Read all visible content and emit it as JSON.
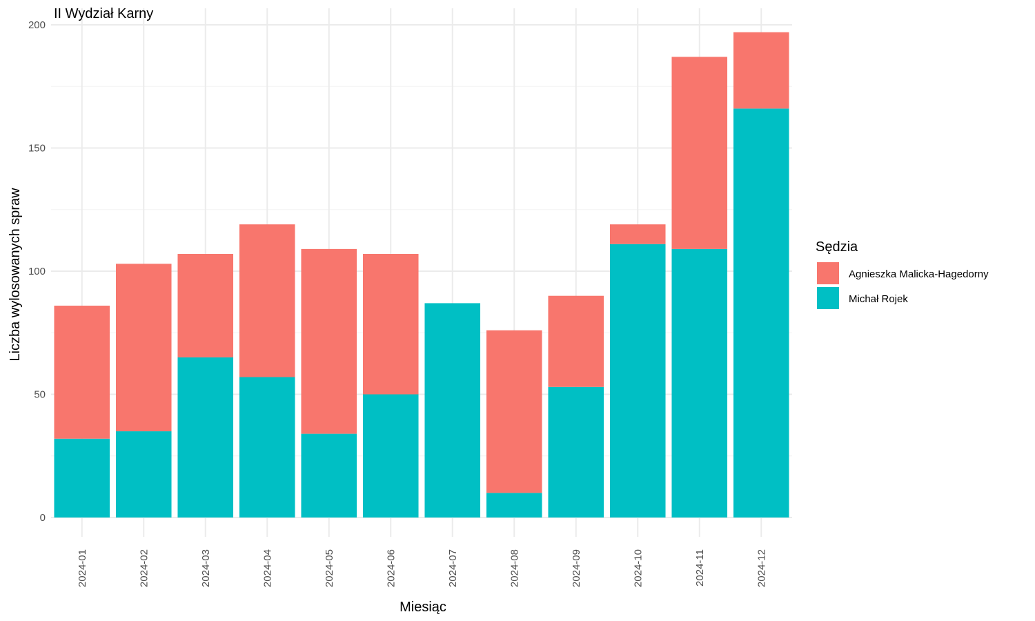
{
  "chart_data": {
    "type": "bar",
    "stacked": true,
    "title": "II Wydział Karny",
    "xlabel": "Miesiąc",
    "ylabel": "Liczba wylosowanych spraw",
    "ylim": [
      0,
      200
    ],
    "yticks": [
      0,
      50,
      100,
      150,
      200
    ],
    "grid": true,
    "legend": {
      "title": "Sędzia",
      "position": "right"
    },
    "categories": [
      "2024-01",
      "2024-02",
      "2024-03",
      "2024-04",
      "2024-05",
      "2024-06",
      "2024-07",
      "2024-08",
      "2024-09",
      "2024-10",
      "2024-11",
      "2024-12"
    ],
    "series": [
      {
        "name": "Agnieszka Malicka-Hagedorny",
        "color": "#F8766D",
        "values": [
          54,
          68,
          42,
          62,
          75,
          57,
          0,
          66,
          37,
          8,
          78,
          31
        ]
      },
      {
        "name": "Michał Rojek",
        "color": "#00BFC4",
        "values": [
          32,
          35,
          65,
          57,
          34,
          50,
          87,
          10,
          53,
          111,
          109,
          166
        ]
      }
    ]
  }
}
